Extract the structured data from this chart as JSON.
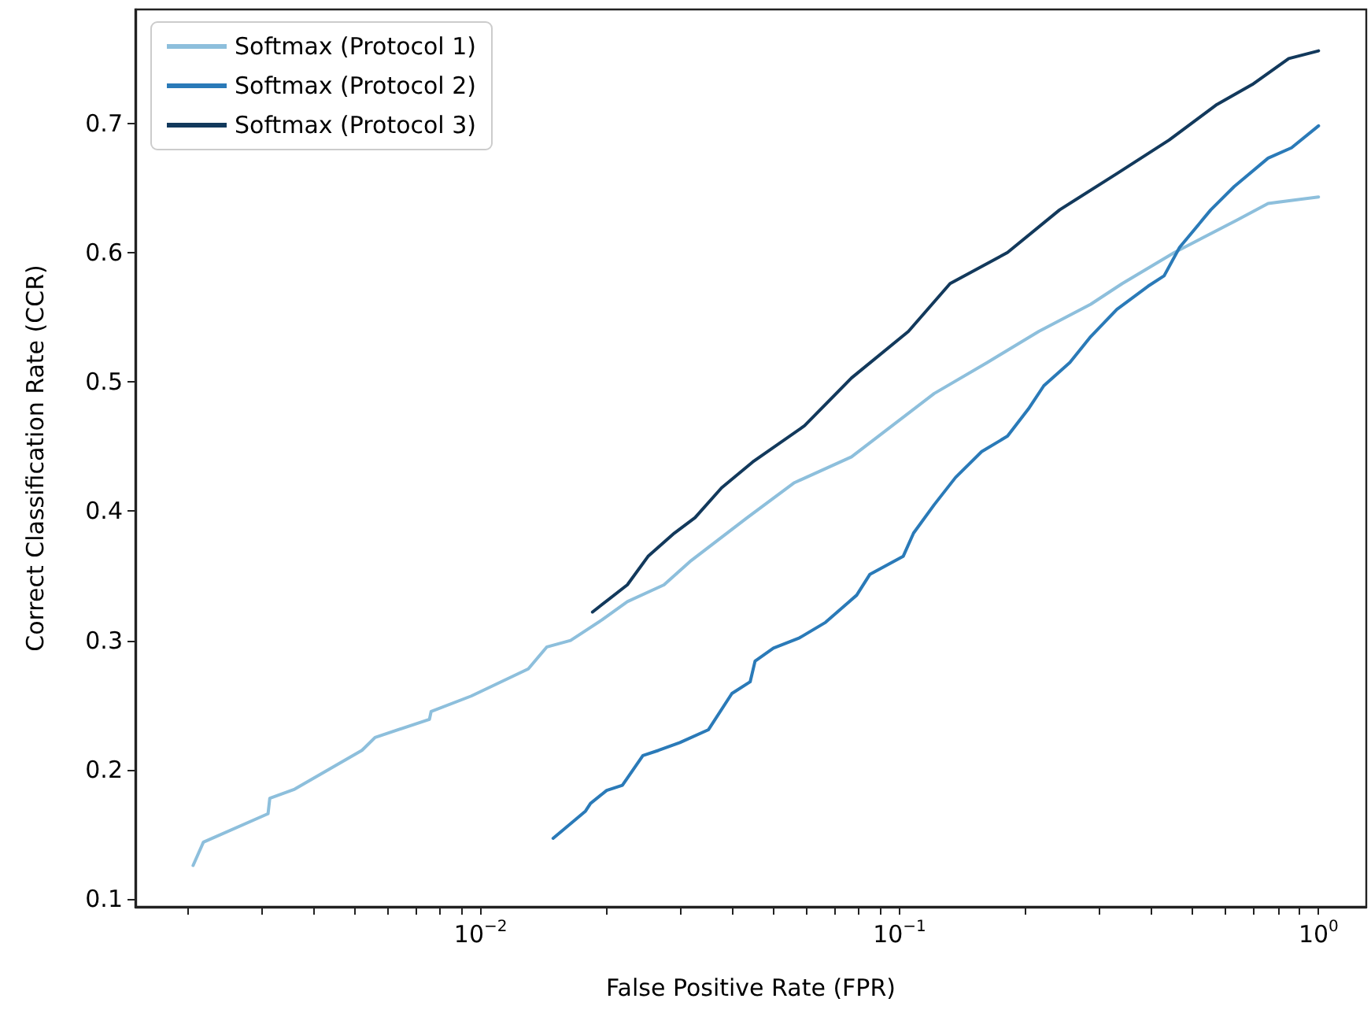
{
  "chart_data": {
    "type": "line",
    "xlabel": "False Positive Rate (FPR)",
    "ylabel": "Correct Classification Rate (CCR)",
    "log": "x",
    "xlim": [
      0.0015,
      1.3
    ],
    "ylim": [
      0.094,
      0.788
    ],
    "xticks": [
      {
        "value": 0.002,
        "label": null
      },
      {
        "value": 0.003,
        "label": null
      },
      {
        "value": 0.004,
        "label": null
      },
      {
        "value": 0.005,
        "label": null
      },
      {
        "value": 0.006,
        "label": null
      },
      {
        "value": 0.007,
        "label": null
      },
      {
        "value": 0.008,
        "label": null
      },
      {
        "value": 0.009,
        "label": null
      },
      {
        "value": 0.01,
        "label": "10$^{−2}$"
      },
      {
        "value": 0.02,
        "label": null
      },
      {
        "value": 0.03,
        "label": null
      },
      {
        "value": 0.04,
        "label": null
      },
      {
        "value": 0.05,
        "label": null
      },
      {
        "value": 0.06,
        "label": null
      },
      {
        "value": 0.07,
        "label": null
      },
      {
        "value": 0.08,
        "label": null
      },
      {
        "value": 0.09,
        "label": null
      },
      {
        "value": 0.1,
        "label": "10$^{−1}$"
      },
      {
        "value": 0.2,
        "label": null
      },
      {
        "value": 0.3,
        "label": null
      },
      {
        "value": 0.4,
        "label": null
      },
      {
        "value": 0.5,
        "label": null
      },
      {
        "value": 0.6,
        "label": null
      },
      {
        "value": 0.7,
        "label": null
      },
      {
        "value": 0.8,
        "label": null
      },
      {
        "value": 0.9,
        "label": null
      },
      {
        "value": 1,
        "label": "10$^{0}$"
      }
    ],
    "yticks": [
      0.1,
      0.2,
      0.3,
      0.4,
      0.5,
      0.6,
      0.7
    ],
    "grid": false,
    "legend": "top left",
    "marker": "none",
    "line_style": "solid",
    "series": [
      {
        "name": "Softmax (Protocol 1)",
        "color": "#8dbfdc",
        "x": [
          0.00206,
          0.00218,
          0.00311,
          0.00314,
          0.0036,
          0.00521,
          0.0056,
          0.00755,
          0.00762,
          0.0095,
          0.013,
          0.0144,
          0.0164,
          0.0195,
          0.0224,
          0.0274,
          0.0316,
          0.0433,
          0.0561,
          0.0768,
          0.121,
          0.162,
          0.215,
          0.286,
          0.34,
          0.453,
          0.638,
          0.758,
          1.0
        ],
        "values": [
          0.126,
          0.144,
          0.166,
          0.178,
          0.185,
          0.215,
          0.225,
          0.239,
          0.245,
          0.257,
          0.278,
          0.295,
          0.3,
          0.316,
          0.33,
          0.343,
          0.361,
          0.395,
          0.422,
          0.442,
          0.491,
          0.515,
          0.539,
          0.56,
          0.576,
          0.6,
          0.625,
          0.638,
          0.643
        ]
      },
      {
        "name": "Softmax (Protocol 2)",
        "color": "#2a7ab8",
        "x": [
          0.0149,
          0.0178,
          0.0183,
          0.02,
          0.0218,
          0.0244,
          0.0266,
          0.0299,
          0.035,
          0.0398,
          0.044,
          0.0452,
          0.05,
          0.0577,
          0.0666,
          0.079,
          0.0849,
          0.102,
          0.108,
          0.121,
          0.136,
          0.157,
          0.181,
          0.203,
          0.221,
          0.255,
          0.286,
          0.33,
          0.392,
          0.428,
          0.466,
          0.553,
          0.629,
          0.758,
          0.862,
          1.0
        ],
        "values": [
          0.147,
          0.168,
          0.174,
          0.184,
          0.188,
          0.211,
          0.215,
          0.221,
          0.231,
          0.259,
          0.268,
          0.284,
          0.294,
          0.302,
          0.314,
          0.335,
          0.351,
          0.365,
          0.383,
          0.405,
          0.426,
          0.446,
          0.458,
          0.479,
          0.497,
          0.515,
          0.535,
          0.556,
          0.574,
          0.582,
          0.604,
          0.633,
          0.651,
          0.673,
          0.681,
          0.698
        ]
      },
      {
        "name": "Softmax (Protocol 3)",
        "color": "#12395c",
        "x": [
          0.0185,
          0.0224,
          0.0251,
          0.029,
          0.0325,
          0.0376,
          0.0446,
          0.0593,
          0.0768,
          0.105,
          0.132,
          0.181,
          0.241,
          0.33,
          0.44,
          0.569,
          0.695,
          0.849,
          1.0
        ],
        "values": [
          0.322,
          0.343,
          0.365,
          0.383,
          0.395,
          0.418,
          0.438,
          0.466,
          0.503,
          0.539,
          0.576,
          0.6,
          0.633,
          0.661,
          0.687,
          0.714,
          0.73,
          0.75,
          0.756
        ]
      }
    ]
  }
}
